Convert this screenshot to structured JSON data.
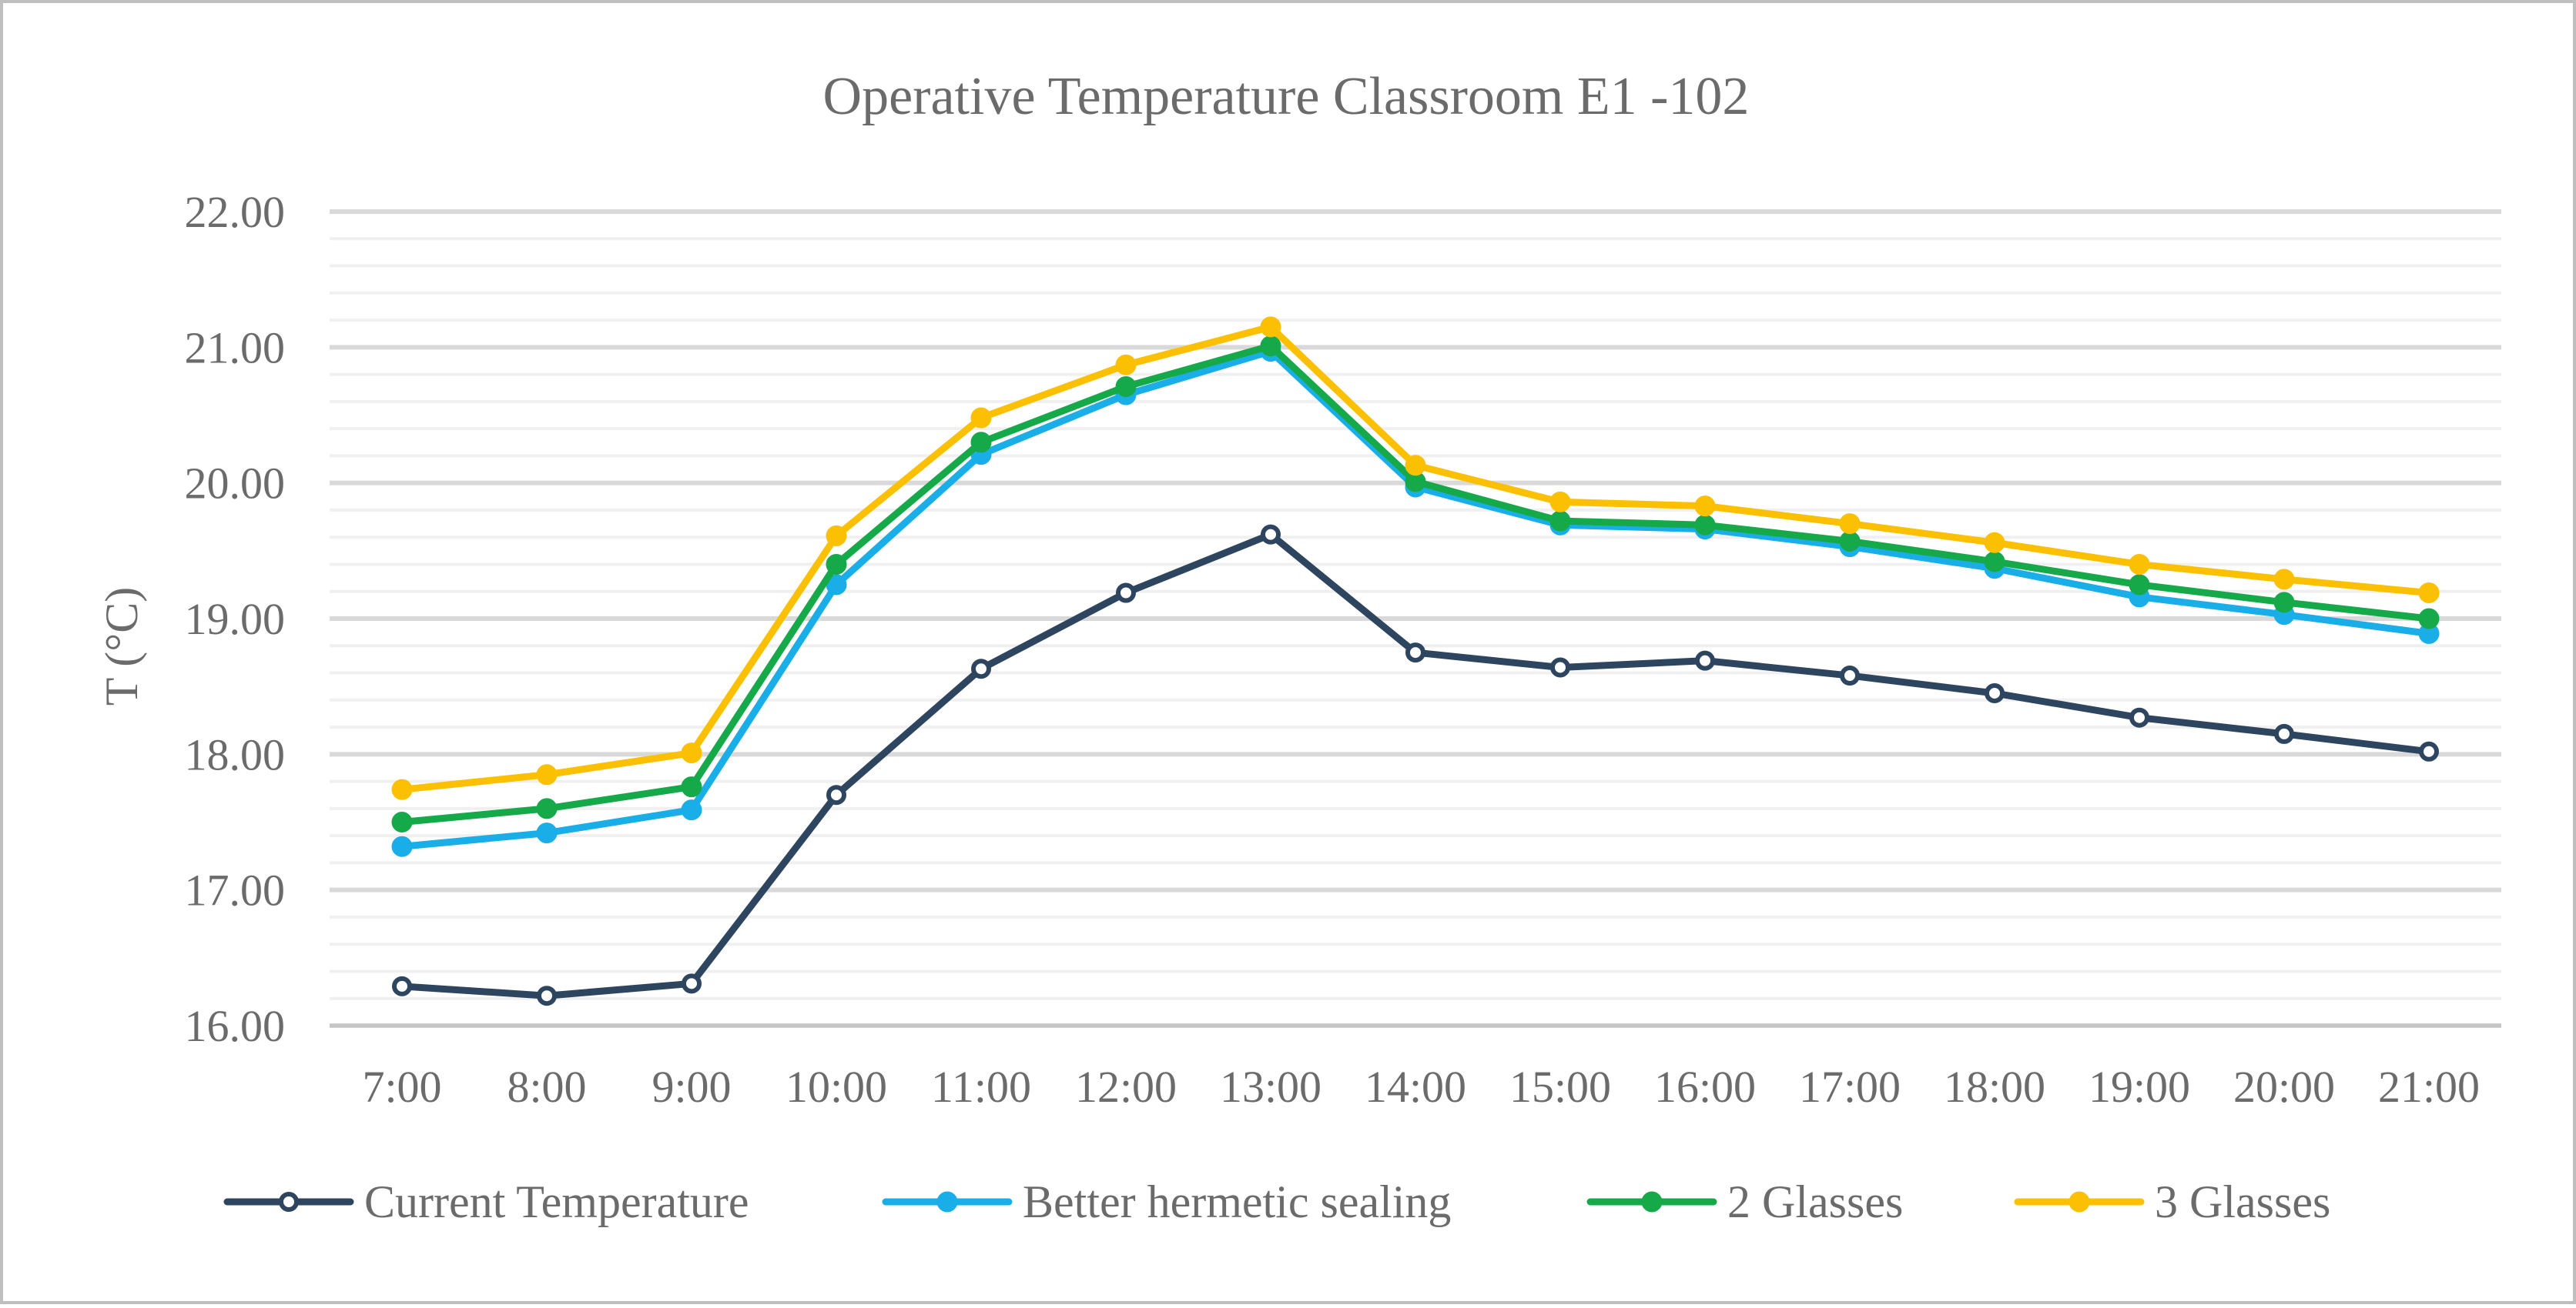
{
  "chart_data": {
    "type": "line",
    "title": "Operative Temperature Classroom E1 -102",
    "xlabel": "",
    "ylabel": "T (°C)",
    "ylim": [
      16,
      22
    ],
    "major_ticks": [
      16,
      17,
      18,
      19,
      20,
      21,
      22
    ],
    "tick_labels": [
      "16.00",
      "17.00",
      "18.00",
      "19.00",
      "20.00",
      "21.00",
      "22.00"
    ],
    "minor_step": 0.2,
    "grid": true,
    "legend_position": "bottom",
    "categories": [
      "7:00",
      "8:00",
      "9:00",
      "10:00",
      "11:00",
      "12:00",
      "13:00",
      "14:00",
      "15:00",
      "16:00",
      "17:00",
      "18:00",
      "19:00",
      "20:00",
      "21:00"
    ],
    "series": [
      {
        "name": "Current Temperature",
        "color": "#2e4560",
        "marker": "hollow",
        "values": [
          16.29,
          16.22,
          16.31,
          17.7,
          18.63,
          19.19,
          19.62,
          18.75,
          18.64,
          18.69,
          18.58,
          18.45,
          18.27,
          18.15,
          18.02
        ]
      },
      {
        "name": "Better hermetic sealing",
        "color": "#1aaee8",
        "marker": "filled",
        "values": [
          17.32,
          17.42,
          17.59,
          19.25,
          20.21,
          20.65,
          20.97,
          19.97,
          19.69,
          19.66,
          19.53,
          19.37,
          19.16,
          19.03,
          18.89
        ]
      },
      {
        "name": "2 Glasses",
        "color": "#16a94a",
        "marker": "filled",
        "values": [
          17.5,
          17.6,
          17.76,
          19.4,
          20.3,
          20.71,
          21.01,
          20.01,
          19.72,
          19.69,
          19.57,
          19.42,
          19.25,
          19.12,
          19.0
        ]
      },
      {
        "name": "3 Glasses",
        "color": "#fbc002",
        "marker": "filled",
        "values": [
          17.74,
          17.85,
          18.01,
          19.61,
          20.48,
          20.87,
          21.15,
          20.13,
          19.86,
          19.83,
          19.7,
          19.56,
          19.4,
          19.29,
          19.19
        ]
      }
    ]
  }
}
